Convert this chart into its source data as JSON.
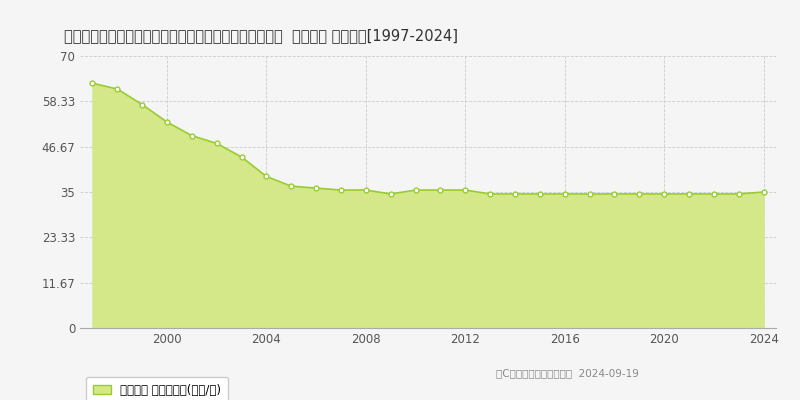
{
  "title": "東京都西多摩郡瑞穂町大字殿ケ谷字榎内川添８０４番６  基準地価 地価推移[1997-2024]",
  "years": [
    1997,
    1998,
    1999,
    2000,
    2001,
    2002,
    2003,
    2004,
    2005,
    2006,
    2007,
    2008,
    2009,
    2010,
    2011,
    2012,
    2013,
    2014,
    2015,
    2016,
    2017,
    2018,
    2019,
    2020,
    2021,
    2022,
    2023,
    2024
  ],
  "values": [
    63.0,
    61.5,
    57.5,
    53.0,
    49.5,
    47.5,
    44.0,
    39.0,
    36.5,
    36.0,
    35.5,
    35.5,
    34.5,
    35.5,
    35.5,
    35.5,
    34.5,
    34.5,
    34.5,
    34.5,
    34.5,
    34.5,
    34.5,
    34.5,
    34.5,
    34.5,
    34.5,
    35.0
  ],
  "ylim": [
    0,
    70
  ],
  "yticks": [
    0,
    11.67,
    23.33,
    35,
    46.67,
    58.33,
    70
  ],
  "ytick_labels": [
    "0",
    "11.67",
    "23.33",
    "35",
    "46.67",
    "58.33",
    "70"
  ],
  "xticks": [
    2000,
    2004,
    2008,
    2012,
    2016,
    2020,
    2024
  ],
  "xlim_left": 1996.5,
  "xlim_right": 2024.5,
  "line_color": "#99cc33",
  "fill_color": "#d4e88a",
  "marker_color": "#ffffff",
  "marker_edge_color": "#99cc33",
  "bg_color": "#f5f5f5",
  "plot_bg_color": "#f5f5f5",
  "grid_color": "#cccccc",
  "legend_label": "基準地価 平均坪単価(万円/坪)",
  "copyright_text": "（C）土地価格ドットコム  2024-09-19",
  "title_fontsize": 10.5,
  "axis_fontsize": 8.5,
  "legend_fontsize": 8.5
}
